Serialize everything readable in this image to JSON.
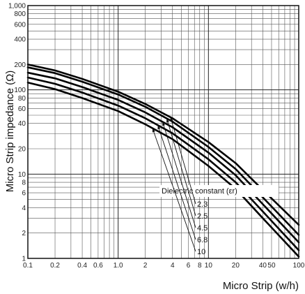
{
  "chart_data": {
    "type": "line",
    "xlabel": "Micro Strip (w/h)",
    "ylabel": "Micro Strip impedance (Ω)",
    "x_scale": "log",
    "y_scale": "log",
    "xlim": [
      0.1,
      100
    ],
    "ylim": [
      1,
      1000
    ],
    "grid": true,
    "x_tick_labels": [
      {
        "v": 0.1,
        "t": "0.1"
      },
      {
        "v": 0.2,
        "t": "0.2"
      },
      {
        "v": 0.4,
        "t": "0.4"
      },
      {
        "v": 0.6,
        "t": "0.6"
      },
      {
        "v": 1,
        "t": "1.0"
      },
      {
        "v": 2,
        "t": "2"
      },
      {
        "v": 4,
        "t": "4"
      },
      {
        "v": 6,
        "t": "6"
      },
      {
        "v": 8,
        "t": "8"
      },
      {
        "v": 10,
        "t": "10"
      },
      {
        "v": 20,
        "t": "20"
      },
      {
        "v": 40,
        "t": "40"
      },
      {
        "v": 50,
        "t": "50"
      },
      {
        "v": 100,
        "t": "100"
      }
    ],
    "y_tick_labels": [
      {
        "v": 1,
        "t": "1"
      },
      {
        "v": 2,
        "t": "2"
      },
      {
        "v": 4,
        "t": "4"
      },
      {
        "v": 6,
        "t": "6"
      },
      {
        "v": 8,
        "t": "8"
      },
      {
        "v": 10,
        "t": "10"
      },
      {
        "v": 20,
        "t": "20"
      },
      {
        "v": 40,
        "t": "40"
      },
      {
        "v": 60,
        "t": "60"
      },
      {
        "v": 80,
        "t": "80"
      },
      {
        "v": 100,
        "t": "100"
      },
      {
        "v": 200,
        "t": "200"
      },
      {
        "v": 400,
        "t": "400"
      },
      {
        "v": 600,
        "t": "600"
      },
      {
        "v": 800,
        "t": "800"
      },
      {
        "v": 1000,
        "t": "1,000"
      }
    ],
    "legend_title": "Dielectric constant (εr)",
    "series": [
      {
        "name": "2.3",
        "x": [
          0.1,
          0.2,
          0.4,
          1,
          2,
          4,
          10,
          20,
          40,
          100
        ],
        "y": [
          200,
          170,
          135,
          95,
          68,
          46,
          24,
          13.5,
          6.5,
          2.5
        ]
      },
      {
        "name": "2.5",
        "x": [
          0.1,
          0.2,
          0.4,
          1,
          2,
          4,
          10,
          20,
          40,
          100
        ],
        "y": [
          185,
          158,
          125,
          88,
          63,
          42,
          21,
          11.5,
          5.3,
          1.9
        ]
      },
      {
        "name": "4.5",
        "x": [
          0.1,
          0.2,
          0.4,
          1,
          2,
          4,
          10,
          20,
          40,
          100
        ],
        "y": [
          160,
          137,
          108,
          76,
          54,
          36,
          18,
          9.7,
          4.4,
          1.55
        ]
      },
      {
        "name": "6.8",
        "x": [
          0.1,
          0.2,
          0.4,
          1,
          2,
          4,
          10,
          20,
          40,
          100
        ],
        "y": [
          140,
          118,
          93,
          65,
          46,
          30.5,
          15,
          8,
          3.6,
          1.25
        ]
      },
      {
        "name": "10",
        "x": [
          0.1,
          0.2,
          0.4,
          1,
          2,
          4,
          10,
          20,
          40,
          100
        ],
        "y": [
          122,
          102,
          80,
          56,
          39,
          26,
          12.5,
          6.7,
          3,
          1.05
        ]
      }
    ]
  }
}
